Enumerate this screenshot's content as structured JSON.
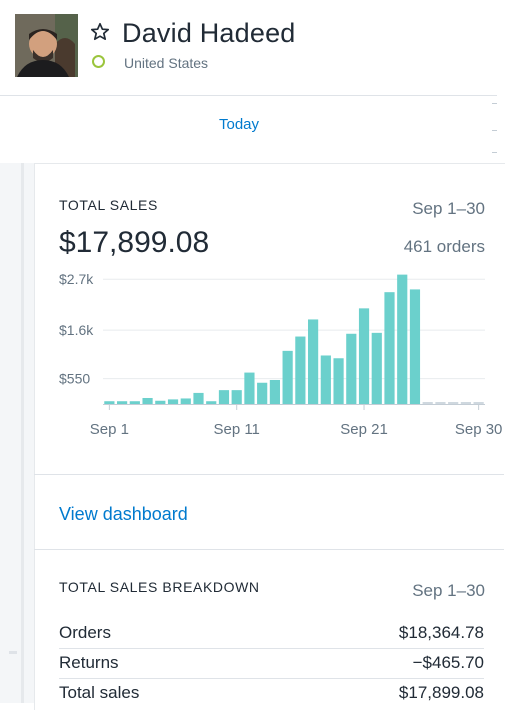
{
  "profile": {
    "name": "David Hadeed",
    "country": "United States",
    "status_color": "#9bc53d"
  },
  "nav": {
    "today": "Today"
  },
  "sales_card": {
    "title": "TOTAL SALES",
    "range": "Sep 1–30",
    "total": "$17,899.08",
    "orders": "461 orders"
  },
  "chart_data": {
    "type": "bar",
    "categories": [
      "Sep 1",
      "Sep 2",
      "Sep 3",
      "Sep 4",
      "Sep 5",
      "Sep 6",
      "Sep 7",
      "Sep 8",
      "Sep 9",
      "Sep 10",
      "Sep 11",
      "Sep 12",
      "Sep 13",
      "Sep 14",
      "Sep 15",
      "Sep 16",
      "Sep 17",
      "Sep 18",
      "Sep 19",
      "Sep 20",
      "Sep 21",
      "Sep 22",
      "Sep 23",
      "Sep 24",
      "Sep 25",
      "Sep 26",
      "Sep 27",
      "Sep 28",
      "Sep 29",
      "Sep 30"
    ],
    "values": [
      60,
      60,
      60,
      130,
      70,
      100,
      120,
      240,
      60,
      300,
      300,
      680,
      460,
      520,
      1150,
      1460,
      1830,
      1050,
      990,
      1520,
      2070,
      1540,
      2420,
      2800,
      2480,
      0,
      0,
      0,
      0,
      0
    ],
    "yticks": [
      550,
      1600,
      2700
    ],
    "ytick_labels": [
      "$550",
      "$1.6k",
      "$2.7k"
    ],
    "xtick_labels": [
      "Sep 1",
      "Sep 11",
      "Sep 21",
      "Sep 30"
    ],
    "xtick_indices": [
      0,
      10,
      20,
      29
    ],
    "ylim": [
      0,
      2900
    ],
    "bar_color": "#6bd0cc",
    "grid": true
  },
  "dashboard_link": "View dashboard",
  "breakdown": {
    "title": "TOTAL SALES BREAKDOWN",
    "range": "Sep 1–30",
    "rows": [
      {
        "label": "Orders",
        "value": "$18,364.78"
      },
      {
        "label": "Returns",
        "value": "−$465.70"
      },
      {
        "label": "Total sales",
        "value": "$17,899.08"
      }
    ]
  }
}
